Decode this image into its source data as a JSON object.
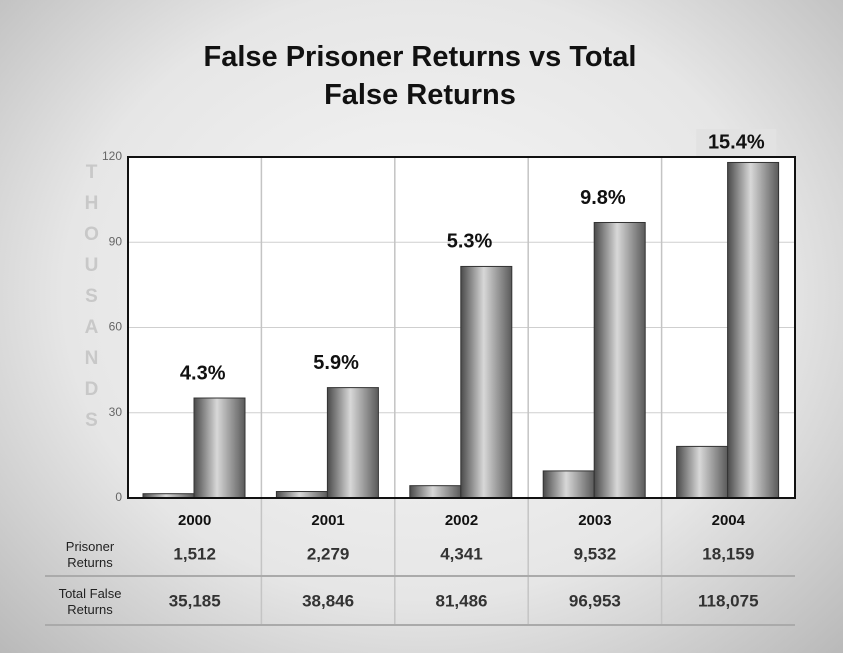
{
  "chart_data": {
    "type": "bar",
    "title": "False Prisoner Returns vs Total False Returns",
    "y_label": "THOUSANDS",
    "categories": [
      "2000",
      "2001",
      "2002",
      "2003",
      "2004"
    ],
    "series": [
      {
        "name": "Prisoner Returns",
        "color": "#8a8a8a",
        "values": [
          1.512,
          2.279,
          4.341,
          9.532,
          18.159
        ],
        "value_labels": [
          "1,512",
          "2,279",
          "4,341",
          "9,532",
          "18,159"
        ]
      },
      {
        "name": "Total False Returns",
        "color": "#8a8a8a",
        "values": [
          35.185,
          38.846,
          81.486,
          96.953,
          118.075
        ],
        "value_labels": [
          "35,185",
          "38,846",
          "81,486",
          "96,953",
          "118,075"
        ]
      }
    ],
    "annotations": [
      "4.3%",
      "5.9%",
      "5.3%",
      "9.8%",
      "15.4%"
    ],
    "ylim": [
      0,
      120
    ],
    "yticks": [
      0,
      30,
      60,
      90,
      120
    ],
    "grid": true
  }
}
